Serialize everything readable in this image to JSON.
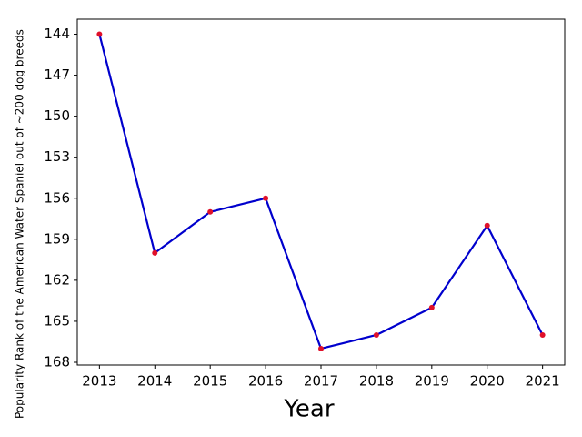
{
  "chart_data": {
    "type": "line",
    "xlabel": "Year",
    "ylabel": "Popularity Rank of the American Water Spaniel out of ~200 dog breeds",
    "x": [
      2013,
      2014,
      2015,
      2016,
      2017,
      2018,
      2019,
      2020,
      2021
    ],
    "values": [
      144,
      160,
      157,
      156,
      167,
      166,
      164,
      158,
      166
    ],
    "color": "#0000cd",
    "marker_color": "#e0102a",
    "xlim": [
      2012.6,
      2021.4
    ],
    "xticks": [
      2013,
      2014,
      2015,
      2016,
      2017,
      2018,
      2019,
      2020,
      2021
    ],
    "ylim": [
      168.2,
      142.9
    ],
    "yticks": [
      144,
      147,
      150,
      153,
      156,
      159,
      162,
      165,
      168
    ],
    "grid": false
  }
}
